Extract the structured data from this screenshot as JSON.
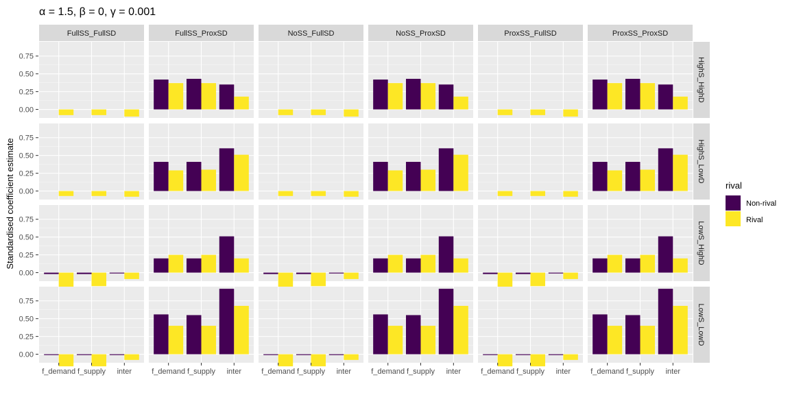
{
  "chart_data": {
    "type": "bar",
    "title": "α = 1.5, β = 0, γ = 0.001",
    "ylabel": "Standardised coefficient estimate",
    "xlabel": "",
    "categories": [
      "f_demand",
      "f_supply",
      "inter"
    ],
    "ylim": [
      -0.12,
      0.95
    ],
    "yticks": [
      0.0,
      0.25,
      0.5,
      0.75
    ],
    "ytick_labels": [
      "0.00",
      "0.25",
      "0.50",
      "0.75"
    ],
    "column_facets": [
      "FullSS_FullSD",
      "FullSS_ProxSD",
      "NoSS_FullSD",
      "NoSS_ProxSD",
      "ProxSS_FullSD",
      "ProxSS_ProxSD"
    ],
    "row_facets": [
      "HighS_HighD",
      "HighS_LowD",
      "LowS_HighD",
      "LowS_LowD"
    ],
    "legend": {
      "title": "rival",
      "placement": "right",
      "entries": [
        {
          "label": "Non-rival",
          "color": "#440154"
        },
        {
          "label": "Rival",
          "color": "#FDE725"
        }
      ]
    },
    "grid": true,
    "panels": {
      "HighS_HighD": {
        "FullSS_FullSD": {
          "nonrival": [
            0.0,
            0.0,
            0.0
          ],
          "rival": [
            -0.08,
            -0.08,
            -0.1
          ]
        },
        "FullSS_ProxSD": {
          "nonrival": [
            0.42,
            0.43,
            0.35
          ],
          "rival": [
            0.37,
            0.37,
            0.18
          ]
        },
        "NoSS_FullSD": {
          "nonrival": [
            0.0,
            0.0,
            0.0
          ],
          "rival": [
            -0.08,
            -0.08,
            -0.1
          ]
        },
        "NoSS_ProxSD": {
          "nonrival": [
            0.42,
            0.43,
            0.35
          ],
          "rival": [
            0.37,
            0.37,
            0.18
          ]
        },
        "ProxSS_FullSD": {
          "nonrival": [
            0.0,
            0.0,
            0.0
          ],
          "rival": [
            -0.08,
            -0.08,
            -0.1
          ]
        },
        "ProxSS_ProxSD": {
          "nonrival": [
            0.42,
            0.43,
            0.35
          ],
          "rival": [
            0.37,
            0.37,
            0.18
          ]
        }
      },
      "HighS_LowD": {
        "FullSS_FullSD": {
          "nonrival": [
            0.0,
            0.0,
            0.0
          ],
          "rival": [
            -0.07,
            -0.07,
            -0.08
          ]
        },
        "FullSS_ProxSD": {
          "nonrival": [
            0.41,
            0.41,
            0.6
          ],
          "rival": [
            0.29,
            0.3,
            0.51
          ]
        },
        "NoSS_FullSD": {
          "nonrival": [
            0.0,
            0.0,
            0.0
          ],
          "rival": [
            -0.07,
            -0.07,
            -0.08
          ]
        },
        "NoSS_ProxSD": {
          "nonrival": [
            0.41,
            0.41,
            0.6
          ],
          "rival": [
            0.29,
            0.3,
            0.51
          ]
        },
        "ProxSS_FullSD": {
          "nonrival": [
            0.0,
            0.0,
            0.0
          ],
          "rival": [
            -0.07,
            -0.07,
            -0.08
          ]
        },
        "ProxSS_ProxSD": {
          "nonrival": [
            0.41,
            0.41,
            0.6
          ],
          "rival": [
            0.29,
            0.3,
            0.51
          ]
        }
      },
      "LowS_HighD": {
        "FullSS_FullSD": {
          "nonrival": [
            -0.02,
            -0.02,
            -0.01
          ],
          "rival": [
            -0.2,
            -0.19,
            -0.09
          ]
        },
        "FullSS_ProxSD": {
          "nonrival": [
            0.2,
            0.2,
            0.51
          ],
          "rival": [
            0.25,
            0.25,
            0.2
          ]
        },
        "NoSS_FullSD": {
          "nonrival": [
            -0.02,
            -0.02,
            -0.01
          ],
          "rival": [
            -0.2,
            -0.19,
            -0.09
          ]
        },
        "NoSS_ProxSD": {
          "nonrival": [
            0.2,
            0.2,
            0.51
          ],
          "rival": [
            0.25,
            0.25,
            0.2
          ]
        },
        "ProxSS_FullSD": {
          "nonrival": [
            -0.02,
            -0.02,
            -0.01
          ],
          "rival": [
            -0.2,
            -0.19,
            -0.09
          ]
        },
        "ProxSS_ProxSD": {
          "nonrival": [
            0.2,
            0.2,
            0.51
          ],
          "rival": [
            0.25,
            0.25,
            0.2
          ]
        }
      },
      "LowS_LowD": {
        "FullSS_FullSD": {
          "nonrival": [
            -0.01,
            -0.01,
            -0.01
          ],
          "rival": [
            -0.17,
            -0.17,
            -0.08
          ]
        },
        "FullSS_ProxSD": {
          "nonrival": [
            0.56,
            0.55,
            0.92
          ],
          "rival": [
            0.4,
            0.4,
            0.68
          ]
        },
        "NoSS_FullSD": {
          "nonrival": [
            -0.01,
            -0.01,
            -0.01
          ],
          "rival": [
            -0.17,
            -0.17,
            -0.08
          ]
        },
        "NoSS_ProxSD": {
          "nonrival": [
            0.56,
            0.55,
            0.92
          ],
          "rival": [
            0.4,
            0.4,
            0.68
          ]
        },
        "ProxSS_FullSD": {
          "nonrival": [
            -0.01,
            -0.01,
            -0.01
          ],
          "rival": [
            -0.17,
            -0.17,
            -0.08
          ]
        },
        "ProxSS_ProxSD": {
          "nonrival": [
            0.56,
            0.55,
            0.92
          ],
          "rival": [
            0.4,
            0.4,
            0.68
          ]
        }
      }
    }
  }
}
